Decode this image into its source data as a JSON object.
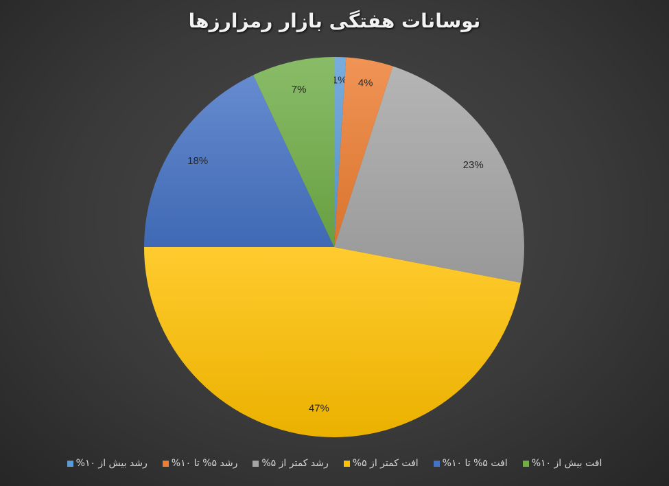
{
  "chart_data": {
    "type": "pie",
    "title": "نوسانات هفتگی بازار رمزارزها",
    "categories": [
      "رشد بیش از ۱۰%",
      "رشد ۵% تا ۱۰%",
      "رشد کمتر از ۵%",
      "افت کمتر از ۵%",
      "افت ۵% تا ۱۰%",
      "افت بیش از ۱۰%"
    ],
    "values": [
      1,
      4,
      23,
      47,
      18,
      7
    ],
    "data_labels": [
      "1%",
      "4%",
      "23%",
      "47%",
      "18%",
      "7%"
    ],
    "colors": [
      "#5b9bd5",
      "#ed7d31",
      "#a5a5a5",
      "#ffc000",
      "#4472c4",
      "#70ad47"
    ],
    "start_angle": "top, clockwise",
    "legend_position": "bottom"
  }
}
